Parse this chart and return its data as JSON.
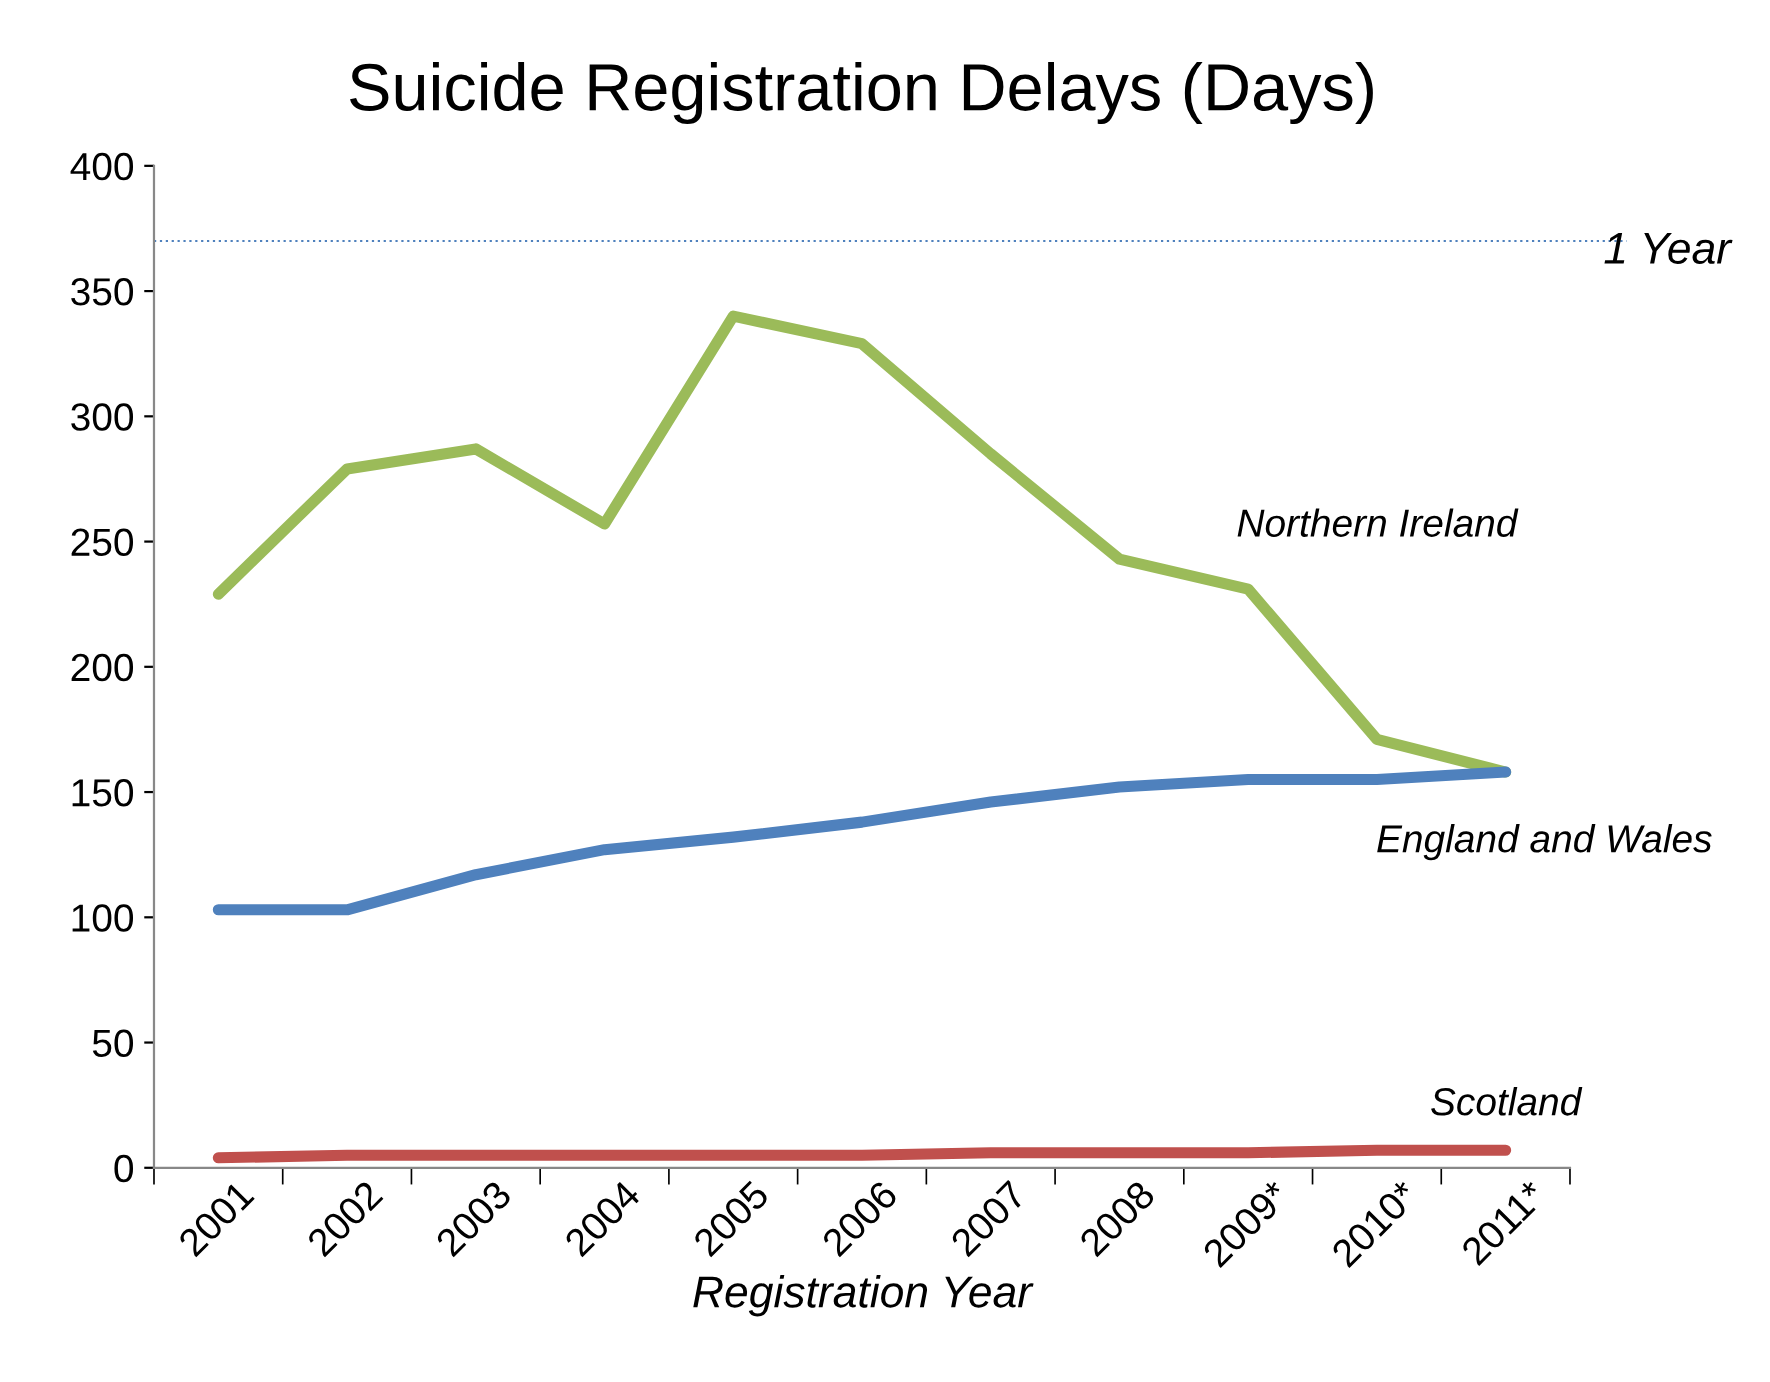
{
  "chart_data": {
    "type": "line",
    "title": "Suicide Registration Delays (Days)",
    "xlabel": "Registration Year",
    "categories": [
      "2001",
      "2002",
      "2003",
      "2004",
      "2005",
      "2006",
      "2007",
      "2008",
      "2009*",
      "2010*",
      "2011*"
    ],
    "series": [
      {
        "name": "Northern Ireland",
        "color": "#9bbb59",
        "values": [
          229,
          279,
          287,
          257,
          340,
          329,
          285,
          243,
          231,
          171,
          158
        ]
      },
      {
        "name": "England and Wales",
        "color": "#4f81bd",
        "values": [
          103,
          103,
          117,
          127,
          132,
          138,
          146,
          152,
          155,
          155,
          158
        ]
      },
      {
        "name": "Scotland",
        "color": "#c0504d",
        "values": [
          4,
          5,
          5,
          5,
          5,
          5,
          6,
          6,
          6,
          7,
          7
        ]
      }
    ],
    "ylim": [
      0,
      400
    ],
    "yticks": [
      0,
      50,
      100,
      150,
      200,
      250,
      300,
      350,
      400
    ],
    "ref_lines": [
      {
        "axis": "y",
        "value": 370,
        "label": "1 Year",
        "color": "#4f81bd",
        "line_style": "dotted"
      }
    ],
    "grid": false,
    "legend": false,
    "marker": "none",
    "line_style": "solid"
  }
}
